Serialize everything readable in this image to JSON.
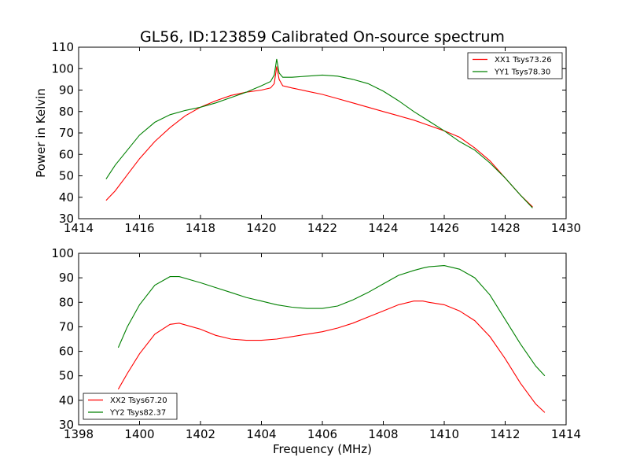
{
  "chart_data": [
    {
      "type": "line",
      "title": "GL56, ID:123859 Calibrated On-source spectrum",
      "xlabel": "",
      "ylabel": "Power in Kelvin",
      "xlim": [
        1414,
        1430
      ],
      "ylim": [
        30,
        110
      ],
      "xticks": [
        "1414",
        "1416",
        "1418",
        "1420",
        "1422",
        "1424",
        "1426",
        "1428",
        "1430"
      ],
      "yticks": [
        "30",
        "40",
        "50",
        "60",
        "70",
        "80",
        "90",
        "100",
        "110"
      ],
      "legend_position": "top-right",
      "series": [
        {
          "name": "XX1 Tsys73.26",
          "color": "#ff0000",
          "x": [
            1414.9,
            1415.2,
            1415.6,
            1416.0,
            1416.5,
            1417.0,
            1417.5,
            1418.0,
            1418.5,
            1419.0,
            1419.5,
            1420.0,
            1420.3,
            1420.42,
            1420.5,
            1420.58,
            1420.7,
            1421.0,
            1421.5,
            1422.0,
            1422.5,
            1423.0,
            1423.5,
            1424.0,
            1424.5,
            1425.0,
            1425.5,
            1426.0,
            1426.5,
            1427.0,
            1427.5,
            1428.0,
            1428.5,
            1428.9
          ],
          "y": [
            38.5,
            43,
            50.5,
            58,
            66,
            72.5,
            78,
            82,
            85,
            87.5,
            89,
            90,
            91,
            93,
            101,
            95,
            92,
            91,
            89.5,
            88,
            86,
            84,
            82,
            80,
            78,
            76,
            73.5,
            71,
            68,
            63,
            57,
            49,
            41,
            35.5
          ]
        },
        {
          "name": "YY1 Tsys78.30",
          "color": "#008000",
          "x": [
            1414.9,
            1415.2,
            1415.6,
            1416.0,
            1416.5,
            1417.0,
            1417.5,
            1418.0,
            1418.5,
            1419.0,
            1419.5,
            1420.0,
            1420.3,
            1420.42,
            1420.5,
            1420.58,
            1420.7,
            1421.0,
            1421.5,
            1422.0,
            1422.5,
            1423.0,
            1423.5,
            1424.0,
            1424.5,
            1425.0,
            1425.5,
            1426.0,
            1426.5,
            1427.0,
            1427.5,
            1428.0,
            1428.5,
            1428.9
          ],
          "y": [
            48.5,
            55,
            62,
            69,
            75,
            78.5,
            80.5,
            82,
            84,
            86.5,
            89,
            92,
            94,
            97,
            104.5,
            98,
            96,
            96,
            96.5,
            97,
            96.5,
            95,
            93,
            89.5,
            85,
            80,
            75.5,
            71,
            66,
            62,
            56,
            49,
            41,
            35
          ]
        }
      ]
    },
    {
      "type": "line",
      "title": "",
      "xlabel": "Frequency (MHz)",
      "ylabel": "",
      "xlim": [
        1398,
        1414
      ],
      "ylim": [
        30,
        100
      ],
      "xticks": [
        "1398",
        "1400",
        "1402",
        "1404",
        "1406",
        "1408",
        "1410",
        "1412",
        "1414"
      ],
      "yticks": [
        "30",
        "40",
        "50",
        "60",
        "70",
        "80",
        "90",
        "100"
      ],
      "legend_position": "bottom-left",
      "series": [
        {
          "name": "XX2 Tsys67.20",
          "color": "#ff0000",
          "x": [
            1399.3,
            1399.6,
            1400.0,
            1400.5,
            1401.0,
            1401.3,
            1402.0,
            1402.5,
            1403.0,
            1403.5,
            1404.0,
            1404.5,
            1405.0,
            1405.5,
            1406.0,
            1406.5,
            1407.0,
            1407.5,
            1408.0,
            1408.5,
            1409.0,
            1409.3,
            1409.5,
            1410.0,
            1410.5,
            1411.0,
            1411.5,
            1412.0,
            1412.5,
            1413.0,
            1413.3
          ],
          "y": [
            44.5,
            51,
            59,
            67,
            71,
            71.5,
            69,
            66.5,
            65,
            64.5,
            64.5,
            65,
            66,
            67,
            68,
            69.5,
            71.5,
            74,
            76.5,
            79,
            80.5,
            80.5,
            80,
            79,
            76.5,
            72.5,
            66,
            57,
            47,
            38.5,
            35
          ]
        },
        {
          "name": "YY2 Tsys82.37",
          "color": "#008000",
          "x": [
            1399.3,
            1399.6,
            1400.0,
            1400.5,
            1401.0,
            1401.3,
            1402.0,
            1402.5,
            1403.0,
            1403.5,
            1404.0,
            1404.5,
            1405.0,
            1405.5,
            1406.0,
            1406.5,
            1407.0,
            1407.5,
            1408.0,
            1408.5,
            1409.0,
            1409.3,
            1409.5,
            1410.0,
            1410.5,
            1411.0,
            1411.5,
            1412.0,
            1412.5,
            1413.0,
            1413.3
          ],
          "y": [
            61.5,
            70,
            79,
            87,
            90.5,
            90.5,
            88,
            86,
            84,
            82,
            80.5,
            79,
            78,
            77.5,
            77.5,
            78.5,
            81,
            84,
            87.5,
            91,
            93,
            94,
            94.5,
            95,
            93.5,
            90,
            83,
            73,
            63,
            54,
            50
          ]
        }
      ]
    }
  ]
}
